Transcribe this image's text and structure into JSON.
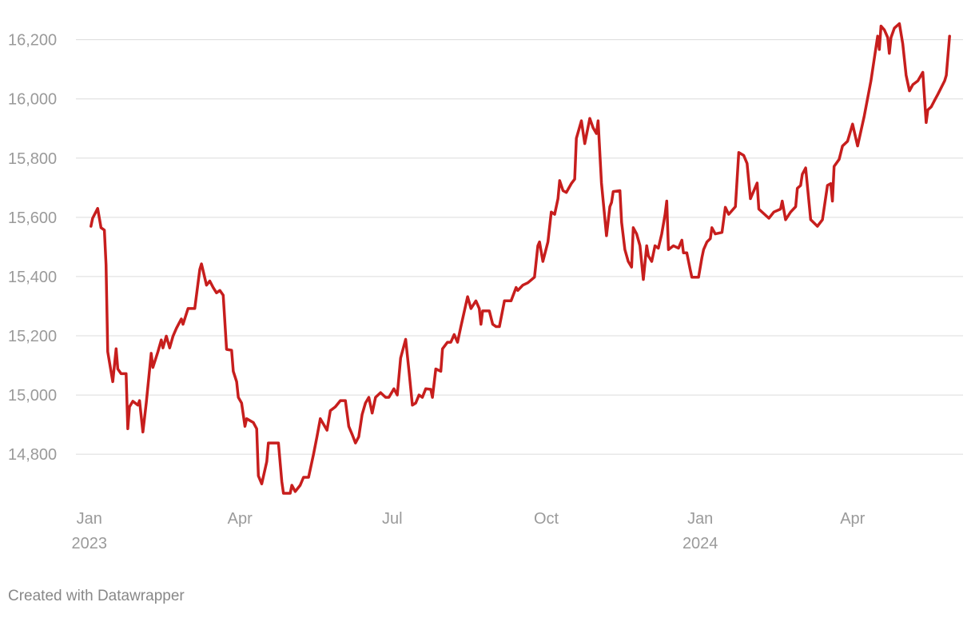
{
  "chart_data": {
    "type": "line",
    "credit": "Created with Datawrapper",
    "xlim": [
      "2022-12-24",
      "2024-06-06"
    ],
    "xticks": [
      {
        "value": "2023-01-01",
        "label": "Jan",
        "year": "2023"
      },
      {
        "value": "2023-04-01",
        "label": "Apr"
      },
      {
        "value": "2023-07-01",
        "label": "Jul"
      },
      {
        "value": "2023-10-01",
        "label": "Oct"
      },
      {
        "value": "2024-01-01",
        "label": "Jan",
        "year": "2024"
      },
      {
        "value": "2024-04-01",
        "label": "Apr"
      }
    ],
    "ylim": [
      14660,
      16280
    ],
    "yticks": [
      {
        "value": 14800,
        "label": "14,800"
      },
      {
        "value": 15000,
        "label": "15,000"
      },
      {
        "value": 15200,
        "label": "15,200"
      },
      {
        "value": 15400,
        "label": "15,400"
      },
      {
        "value": 15600,
        "label": "15,600"
      },
      {
        "value": 15800,
        "label": "15,800"
      },
      {
        "value": 16000,
        "label": "16,000"
      },
      {
        "value": 16200,
        "label": "16,200"
      }
    ],
    "grid": true,
    "x": [
      "2023-01-02",
      "2023-01-03",
      "2023-01-06",
      "2023-01-08",
      "2023-01-10",
      "2023-01-11",
      "2023-01-12",
      "2023-01-15",
      "2023-01-17",
      "2023-01-18",
      "2023-01-20",
      "2023-01-23",
      "2023-01-24",
      "2023-01-25",
      "2023-01-27",
      "2023-01-30",
      "2023-01-31",
      "2023-02-02",
      "2023-02-04",
      "2023-02-07",
      "2023-02-08",
      "2023-02-11",
      "2023-02-13",
      "2023-02-14",
      "2023-02-16",
      "2023-02-18",
      "2023-02-20",
      "2023-02-22",
      "2023-02-25",
      "2023-02-26",
      "2023-03-01",
      "2023-03-05",
      "2023-03-08",
      "2023-03-09",
      "2023-03-12",
      "2023-03-14",
      "2023-03-16",
      "2023-03-18",
      "2023-03-20",
      "2023-03-22",
      "2023-03-24",
      "2023-03-27",
      "2023-03-28",
      "2023-03-30",
      "2023-03-31",
      "2023-04-02",
      "2023-04-04",
      "2023-04-05",
      "2023-04-09",
      "2023-04-11",
      "2023-04-12",
      "2023-04-14",
      "2023-04-17",
      "2023-04-18",
      "2023-04-24",
      "2023-04-26",
      "2023-04-27",
      "2023-05-01",
      "2023-05-02",
      "2023-05-04",
      "2023-05-07",
      "2023-05-09",
      "2023-05-12",
      "2023-05-15",
      "2023-05-17",
      "2023-05-19",
      "2023-05-23",
      "2023-05-25",
      "2023-05-28",
      "2023-05-31",
      "2023-06-03",
      "2023-06-05",
      "2023-06-07",
      "2023-06-09",
      "2023-06-11",
      "2023-06-13",
      "2023-06-15",
      "2023-06-17",
      "2023-06-19",
      "2023-06-21",
      "2023-06-24",
      "2023-06-27",
      "2023-06-29",
      "2023-07-02",
      "2023-07-04",
      "2023-07-06",
      "2023-07-09",
      "2023-07-11",
      "2023-07-13",
      "2023-07-15",
      "2023-07-17",
      "2023-07-19",
      "2023-07-21",
      "2023-07-24",
      "2023-07-25",
      "2023-07-27",
      "2023-07-30",
      "2023-07-31",
      "2023-08-03",
      "2023-08-05",
      "2023-08-07",
      "2023-08-09",
      "2023-08-11",
      "2023-08-15",
      "2023-08-17",
      "2023-08-20",
      "2023-08-22",
      "2023-08-23",
      "2023-08-24",
      "2023-08-28",
      "2023-08-30",
      "2023-09-01",
      "2023-09-03",
      "2023-09-06",
      "2023-09-10",
      "2023-09-13",
      "2023-09-14",
      "2023-09-17",
      "2023-09-20",
      "2023-09-24",
      "2023-09-26",
      "2023-09-27",
      "2023-09-29",
      "2023-10-02",
      "2023-10-04",
      "2023-10-06",
      "2023-10-08",
      "2023-10-09",
      "2023-10-11",
      "2023-10-13",
      "2023-10-16",
      "2023-10-18",
      "2023-10-19",
      "2023-10-22",
      "2023-10-24",
      "2023-10-27",
      "2023-10-29",
      "2023-10-31",
      "2023-11-01",
      "2023-11-03",
      "2023-11-06",
      "2023-11-08",
      "2023-11-09",
      "2023-11-10",
      "2023-11-14",
      "2023-11-15",
      "2023-11-16",
      "2023-11-17",
      "2023-11-19",
      "2023-11-21",
      "2023-11-22",
      "2023-11-24",
      "2023-11-26",
      "2023-11-28",
      "2023-11-30",
      "2023-12-01",
      "2023-12-03",
      "2023-12-05",
      "2023-12-07",
      "2023-12-09",
      "2023-12-11",
      "2023-12-12",
      "2023-12-13",
      "2023-12-16",
      "2023-12-19",
      "2023-12-21",
      "2023-12-22",
      "2023-12-24",
      "2023-12-26",
      "2023-12-27",
      "2023-12-31",
      "2024-01-02",
      "2024-01-03",
      "2024-01-05",
      "2024-01-07",
      "2024-01-08",
      "2024-01-10",
      "2024-01-14",
      "2024-01-16",
      "2024-01-18",
      "2024-01-22",
      "2024-01-24",
      "2024-01-27",
      "2024-01-29",
      "2024-01-31",
      "2024-02-04",
      "2024-02-05",
      "2024-02-11",
      "2024-02-14",
      "2024-02-18",
      "2024-02-19",
      "2024-02-21",
      "2024-02-24",
      "2024-02-27",
      "2024-02-28",
      "2024-03-01",
      "2024-03-02",
      "2024-03-04",
      "2024-03-07",
      "2024-03-11",
      "2024-03-14",
      "2024-03-17",
      "2024-03-19",
      "2024-03-20",
      "2024-03-21",
      "2024-03-24",
      "2024-03-26",
      "2024-03-29",
      "2024-04-01",
      "2024-04-04",
      "2024-04-08",
      "2024-04-12",
      "2024-04-16",
      "2024-04-17",
      "2024-04-18",
      "2024-04-20",
      "2024-04-22",
      "2024-04-23",
      "2024-04-24",
      "2024-04-26",
      "2024-04-29",
      "2024-05-01",
      "2024-05-03",
      "2024-05-05",
      "2024-05-07",
      "2024-05-10",
      "2024-05-13",
      "2024-05-15",
      "2024-05-16",
      "2024-05-18",
      "2024-05-20",
      "2024-05-22",
      "2024-05-26",
      "2024-05-27",
      "2024-05-29"
    ],
    "series": [
      {
        "color": "#c71e1d",
        "values": [
          15570,
          15597,
          15630,
          15565,
          15557,
          15440,
          15146,
          15045,
          15156,
          15088,
          15072,
          15072,
          14886,
          14960,
          14979,
          14966,
          14981,
          14875,
          14973,
          15141,
          15093,
          15146,
          15186,
          15159,
          15199,
          15159,
          15199,
          15225,
          15257,
          15239,
          15292,
          15292,
          15424,
          15443,
          15371,
          15385,
          15363,
          15345,
          15353,
          15337,
          15154,
          15151,
          15080,
          15045,
          14992,
          14973,
          14894,
          14920,
          14907,
          14886,
          14727,
          14700,
          14775,
          14838,
          14838,
          14708,
          14668,
          14668,
          14695,
          14674,
          14695,
          14722,
          14722,
          14801,
          14859,
          14920,
          14881,
          14947,
          14960,
          14981,
          14981,
          14894,
          14867,
          14838,
          14859,
          14934,
          14973,
          14992,
          14939,
          14992,
          15008,
          14992,
          14992,
          15021,
          15000,
          15125,
          15188,
          15080,
          14966,
          14973,
          15000,
          14992,
          15021,
          15019,
          14992,
          15088,
          15080,
          15156,
          15178,
          15178,
          15204,
          15178,
          15231,
          15332,
          15292,
          15318,
          15292,
          15239,
          15284,
          15284,
          15239,
          15231,
          15231,
          15318,
          15318,
          15363,
          15353,
          15371,
          15379,
          15398,
          15504,
          15517,
          15451,
          15517,
          15618,
          15610,
          15663,
          15724,
          15690,
          15684,
          15714,
          15729,
          15867,
          15926,
          15849,
          15934,
          15902,
          15883,
          15926,
          15716,
          15538,
          15636,
          15650,
          15687,
          15690,
          15583,
          15538,
          15491,
          15451,
          15432,
          15565,
          15544,
          15504,
          15390,
          15504,
          15470,
          15451,
          15504,
          15496,
          15544,
          15610,
          15655,
          15491,
          15504,
          15496,
          15523,
          15480,
          15480,
          15424,
          15398,
          15398,
          15464,
          15491,
          15517,
          15528,
          15565,
          15544,
          15549,
          15634,
          15610,
          15636,
          15819,
          15809,
          15782,
          15663,
          15716,
          15628,
          15597,
          15618,
          15628,
          15655,
          15592,
          15618,
          15636,
          15698,
          15708,
          15745,
          15767,
          15592,
          15570,
          15592,
          15708,
          15714,
          15655,
          15772,
          15796,
          15841,
          15857,
          15915,
          15841,
          15942,
          16061,
          16212,
          16167,
          16246,
          16233,
          16207,
          16154,
          16207,
          16239,
          16254,
          16186,
          16080,
          16027,
          16048,
          16061,
          16090,
          15920,
          15963,
          15973,
          15995,
          16016,
          16061,
          16080,
          16212
        ]
      }
    ]
  }
}
